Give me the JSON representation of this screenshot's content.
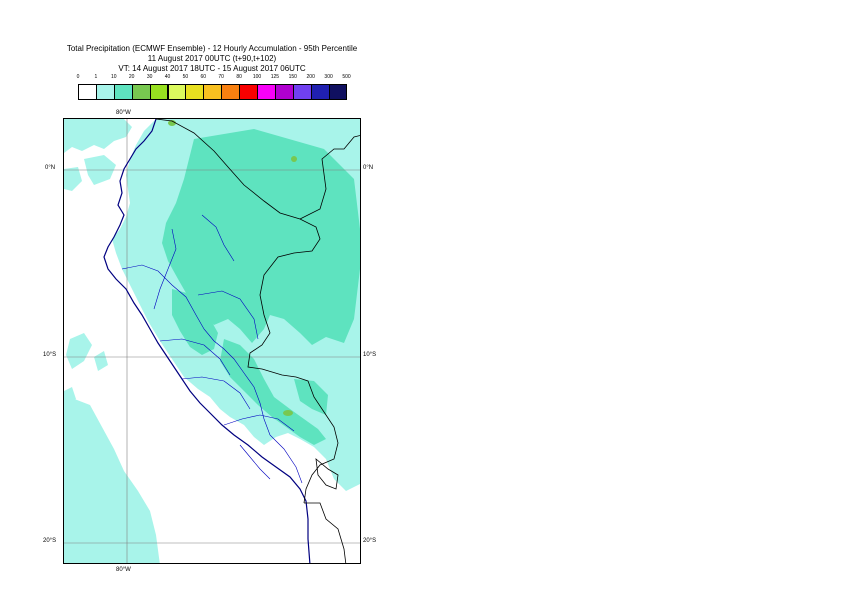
{
  "title": {
    "line1": "Total Precipitation (ECMWF Ensemble) - 12 Hourly Accumulation - 95th Percentile",
    "line2": "11 August 2017 00UTC (t+90,t+102)",
    "line3": "VT: 14 August 2017 18UTC - 15 August 2017 06UTC"
  },
  "legend": {
    "labels": [
      "0",
      "1",
      "10",
      "20",
      "30",
      "40",
      "50",
      "60",
      "70",
      "80",
      "100",
      "125",
      "150",
      "200",
      "300",
      "500"
    ],
    "colors": [
      "#ffffff",
      "#a8f4ea",
      "#5ee3bf",
      "#78c850",
      "#98e020",
      "#dcfa5e",
      "#e8e020",
      "#f8c020",
      "#f88010",
      "#f80000",
      "#f800f8",
      "#b000d0",
      "#7040f0",
      "#2020b0",
      "#101060"
    ]
  },
  "axes": {
    "lon_top": "80°W",
    "lon_bottom": "80°W",
    "lat_0_left": "0°N",
    "lat_0_right": "0°N",
    "lat_10_left": "10°S",
    "lat_10_right": "10°S",
    "lat_20_left": "20°S",
    "lat_20_right": "20°S"
  },
  "map": {
    "region": "Peru and surroundings",
    "colors": {
      "ocean_light": "#a8f4ea",
      "land_teal": "#5ee3bf",
      "green": "#78c850",
      "coast": "#000080",
      "borders": "#000000",
      "grid": "#808080"
    }
  }
}
